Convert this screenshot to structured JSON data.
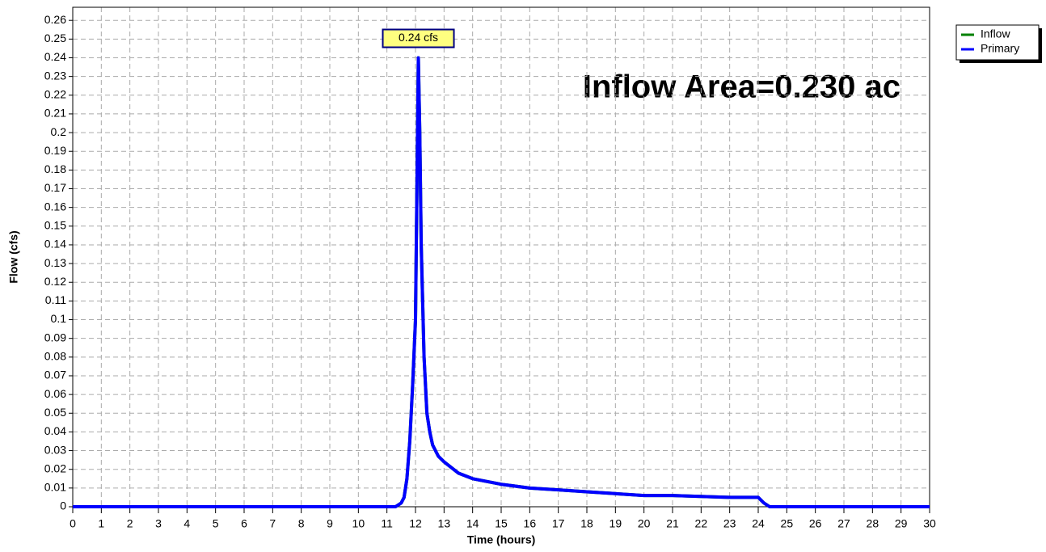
{
  "chart_data": {
    "type": "line",
    "xlabel": "Time  (hours)",
    "ylabel": "Flow  (cfs)",
    "annotation": "Inflow Area=0.230 ac",
    "peak": {
      "text": "0.24 cfs",
      "x": 12.1,
      "y": 0.24
    },
    "x": [
      0,
      11.3,
      11.5,
      11.6,
      11.7,
      11.8,
      11.9,
      12.0,
      12.05,
      12.1,
      12.15,
      12.2,
      12.3,
      12.4,
      12.5,
      12.6,
      12.8,
      13,
      13.5,
      14,
      15,
      16,
      17,
      18,
      19,
      20,
      21,
      23,
      24,
      24.2,
      24.4,
      30
    ],
    "series": [
      {
        "name": "Inflow",
        "color": "#008000",
        "values": [
          0,
          0,
          0.002,
          0.005,
          0.015,
          0.035,
          0.065,
          0.1,
          0.17,
          0.24,
          0.2,
          0.14,
          0.08,
          0.05,
          0.04,
          0.033,
          0.027,
          0.024,
          0.018,
          0.015,
          0.012,
          0.01,
          0.009,
          0.008,
          0.007,
          0.006,
          0.006,
          0.005,
          0.005,
          0.002,
          0,
          0
        ]
      },
      {
        "name": "Primary",
        "color": "#0000ff",
        "values": [
          0,
          0,
          0.002,
          0.005,
          0.015,
          0.035,
          0.065,
          0.1,
          0.17,
          0.24,
          0.2,
          0.14,
          0.08,
          0.05,
          0.04,
          0.033,
          0.027,
          0.024,
          0.018,
          0.015,
          0.012,
          0.01,
          0.009,
          0.008,
          0.007,
          0.006,
          0.006,
          0.005,
          0.005,
          0.002,
          0,
          0
        ]
      }
    ],
    "xlim": [
      0,
      30
    ],
    "xticks": [
      0,
      1,
      2,
      3,
      4,
      5,
      6,
      7,
      8,
      9,
      10,
      11,
      12,
      13,
      14,
      15,
      16,
      17,
      18,
      19,
      20,
      21,
      22,
      23,
      24,
      25,
      26,
      27,
      28,
      29,
      30
    ],
    "ylim": [
      0,
      0.267
    ],
    "yticks": [
      0,
      0.01,
      0.02,
      0.03,
      0.04,
      0.05,
      0.06,
      0.07,
      0.08,
      0.09,
      0.1,
      0.11,
      0.12,
      0.13,
      0.14,
      0.15,
      0.16,
      0.17,
      0.18,
      0.19,
      0.2,
      0.21,
      0.22,
      0.23,
      0.24,
      0.25,
      0.26
    ],
    "grid": true
  }
}
